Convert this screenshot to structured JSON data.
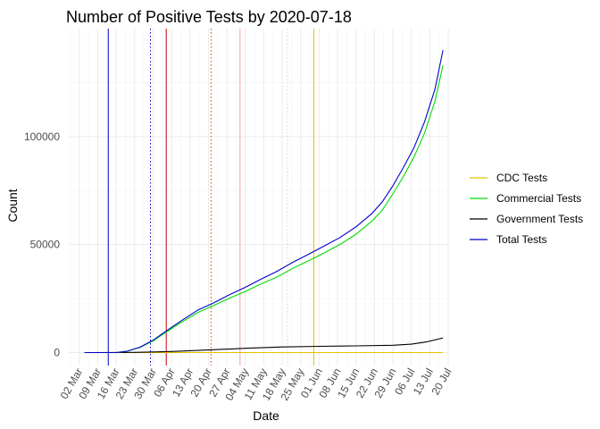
{
  "chart_data": {
    "type": "line",
    "title": "Number of Positive Tests by  2020-07-18",
    "xlabel": "Date",
    "ylabel": "Count",
    "x_range": [
      "2020-02-27",
      "2020-07-20"
    ],
    "ylim": [
      -6000,
      150000
    ],
    "grid": true,
    "legend_position": "right",
    "x_tick_labels": [
      "02 Mar",
      "09 Mar",
      "16 Mar",
      "23 Mar",
      "30 Mar",
      "06 Apr",
      "13 Apr",
      "20 Apr",
      "27 Apr",
      "04 May",
      "11 May",
      "18 May",
      "25 May",
      "01 Jun",
      "08 Jun",
      "15 Jun",
      "22 Jun",
      "29 Jun",
      "06 Jul",
      "13 Jul",
      "20 Jul"
    ],
    "x_tick_dates": [
      "2020-03-02",
      "2020-03-09",
      "2020-03-16",
      "2020-03-23",
      "2020-03-30",
      "2020-04-06",
      "2020-04-13",
      "2020-04-20",
      "2020-04-27",
      "2020-05-04",
      "2020-05-11",
      "2020-05-18",
      "2020-05-25",
      "2020-06-01",
      "2020-06-08",
      "2020-06-15",
      "2020-06-22",
      "2020-06-29",
      "2020-07-06",
      "2020-07-13",
      "2020-07-20"
    ],
    "y_ticks": [
      0,
      50000,
      100000
    ],
    "y_tick_labels": [
      "0",
      "50000",
      "100000"
    ],
    "series": [
      {
        "name": "CDC Tests",
        "color": "#E5C200",
        "x": [
          "2020-03-04",
          "2020-07-18"
        ],
        "values": [
          0,
          0
        ]
      },
      {
        "name": "Commercial Tests",
        "color": "#00DD00",
        "x": [
          "2020-03-04",
          "2020-03-16",
          "2020-03-20",
          "2020-03-25",
          "2020-03-30",
          "2020-04-04",
          "2020-04-10",
          "2020-04-16",
          "2020-04-22",
          "2020-04-28",
          "2020-05-04",
          "2020-05-10",
          "2020-05-16",
          "2020-05-22",
          "2020-05-28",
          "2020-06-03",
          "2020-06-09",
          "2020-06-15",
          "2020-06-21",
          "2020-06-25",
          "2020-06-29",
          "2020-07-03",
          "2020-07-07",
          "2020-07-11",
          "2020-07-15",
          "2020-07-18"
        ],
        "values": [
          0,
          0,
          600,
          2400,
          5400,
          9500,
          14200,
          18600,
          21800,
          25200,
          28300,
          31800,
          35000,
          39000,
          42500,
          46200,
          50100,
          54800,
          60800,
          66000,
          73500,
          81500,
          90500,
          101500,
          116500,
          133000
        ]
      },
      {
        "name": "Government Tests",
        "color": "#000000",
        "x": [
          "2020-03-04",
          "2020-03-23",
          "2020-04-06",
          "2020-04-20",
          "2020-05-04",
          "2020-05-18",
          "2020-06-01",
          "2020-06-15",
          "2020-06-29",
          "2020-07-06",
          "2020-07-12",
          "2020-07-18"
        ],
        "values": [
          0,
          100,
          500,
          1200,
          2000,
          2600,
          2900,
          3100,
          3400,
          3900,
          5000,
          6800
        ]
      },
      {
        "name": "Total Tests",
        "color": "#0000CC",
        "x": [
          "2020-03-04",
          "2020-03-16",
          "2020-03-20",
          "2020-03-25",
          "2020-03-30",
          "2020-04-04",
          "2020-04-10",
          "2020-04-16",
          "2020-04-22",
          "2020-04-28",
          "2020-05-04",
          "2020-05-10",
          "2020-05-16",
          "2020-05-22",
          "2020-05-28",
          "2020-06-03",
          "2020-06-09",
          "2020-06-15",
          "2020-06-21",
          "2020-06-25",
          "2020-06-29",
          "2020-07-03",
          "2020-07-07",
          "2020-07-11",
          "2020-07-15",
          "2020-07-18"
        ],
        "values": [
          0,
          0,
          600,
          2500,
          5700,
          10000,
          15000,
          19700,
          23000,
          26800,
          30200,
          34000,
          37600,
          41800,
          45500,
          49400,
          53300,
          58200,
          64300,
          69800,
          77200,
          85700,
          94800,
          106700,
          122000,
          140000
        ]
      }
    ],
    "reference_lines": [
      {
        "date": "2020-03-13",
        "color": "#0000CC",
        "style": "solid"
      },
      {
        "date": "2020-03-29",
        "color": "#0000CC",
        "style": "dotted"
      },
      {
        "date": "2020-04-04",
        "color": "#CC0000",
        "style": "solid"
      },
      {
        "date": "2020-04-21",
        "color": "#CC4400",
        "style": "dotted"
      },
      {
        "date": "2020-05-02",
        "color": "#F4A0A0",
        "style": "solid"
      },
      {
        "date": "2020-05-20",
        "color": "#F4C0C0",
        "style": "dotted"
      },
      {
        "date": "2020-05-30",
        "color": "#E5C200",
        "style": "solid"
      }
    ]
  }
}
